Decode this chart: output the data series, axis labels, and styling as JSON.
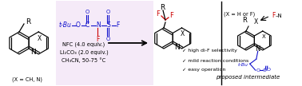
{
  "background_color": "#ffffff",
  "panel_bg_color": "#f5eaf8",
  "figsize": [
    3.78,
    1.08
  ],
  "dpi": 100,
  "left_label": "(X = CH, N)",
  "reagents_line1": "NFC (4.0 equiv.)",
  "reagents_line2": "Li₂CO₃ (2.0 equiv.)",
  "reagents_line3": "CH₃CN, 50-75 °C",
  "checkmarks": [
    "✓ high di-F selectivity",
    "✓ mild reaction conditions",
    "✓ easy operation"
  ],
  "proposed_label": "proposed intermediate",
  "x_eq_label": "(X = H or F)"
}
